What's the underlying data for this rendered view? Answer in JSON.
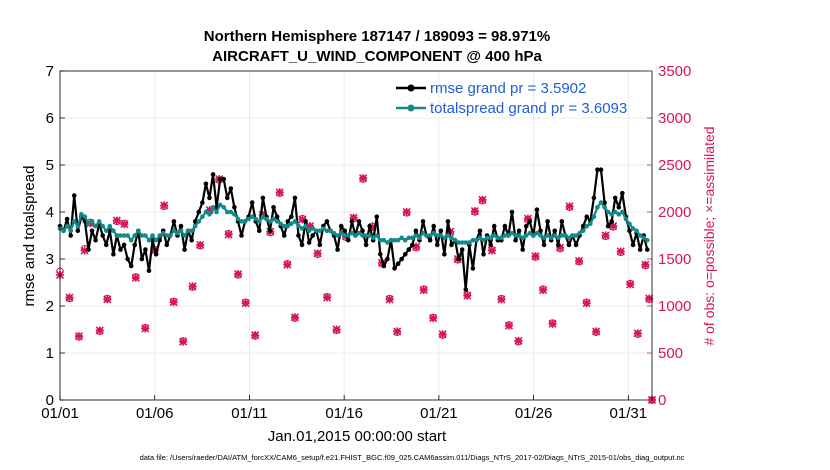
{
  "chart_data": {
    "type": "line",
    "title": [
      "Northern Hemisphere 187147 / 189093 = 98.971%",
      "AIRCRAFT_U_WIND_COMPONENT @ 400 hPa"
    ],
    "xlabel": "Jan.01,2015 00:00:00 start",
    "ylabel": "rmse and totalspread",
    "ylabel_right": "# of obs: o=possible; ×=assimilated",
    "footnote": "data file: /Users/raeder/DAI/ATM_forcXX/CAM6_setup/f.e21.FHIST_BGC.f09_025.CAM6assim.011/Diags_NTrS_2017-02/Diags_NTrS_2015-01/obs_diag_output.nc",
    "xlim": [
      0,
      31.25
    ],
    "ylim": [
      0,
      7
    ],
    "ylim_right": [
      0,
      3500
    ],
    "x_ticks": [
      0,
      5,
      10,
      15,
      20,
      25,
      30
    ],
    "x_tick_labels": [
      "01/01",
      "01/06",
      "01/11",
      "01/16",
      "01/21",
      "01/26",
      "01/31"
    ],
    "y_ticks": [
      0,
      1,
      2,
      3,
      4,
      5,
      6,
      7
    ],
    "y_ticks_right": [
      0,
      500,
      1000,
      1500,
      2000,
      2500,
      3000,
      3500
    ],
    "colors": {
      "rmse": "#000000",
      "spread": "#128a8a",
      "obs": "#d6165a",
      "legend_text": "#1f5fd6"
    },
    "series": [
      {
        "name": "rmse grand pr = 3.5902",
        "values": [
          3.7,
          3.6,
          3.85,
          3.5,
          4.35,
          3.6,
          3.9,
          3.8,
          3.2,
          3.6,
          3.4,
          3.75,
          3.5,
          3.3,
          3.6,
          3.1,
          3.5,
          3.2,
          3.3,
          3.0,
          2.85,
          3.3,
          3.6,
          3.0,
          3.2,
          2.75,
          3.4,
          3.1,
          3.4,
          3.6,
          3.3,
          3.5,
          3.8,
          3.5,
          3.7,
          3.2,
          3.6,
          3.4,
          3.8,
          4.0,
          4.2,
          4.6,
          4.3,
          4.8,
          4.1,
          4.7,
          4.7,
          4.3,
          4.5,
          4.1,
          3.8,
          3.5,
          3.8,
          3.9,
          4.2,
          3.8,
          3.6,
          4.3,
          3.9,
          3.6,
          4.1,
          3.9,
          3.7,
          3.5,
          3.8,
          3.9,
          4.3,
          3.5,
          3.3,
          3.8,
          3.35,
          3.5,
          3.6,
          3.3,
          3.7,
          3.8,
          3.6,
          3.5,
          3.2,
          3.7,
          3.6,
          3.4,
          3.8,
          3.5,
          3.8,
          3.6,
          3.3,
          3.7,
          3.4,
          3.9,
          3.1,
          2.85,
          3.0,
          3.4,
          2.8,
          2.9,
          3.0,
          3.1,
          3.2,
          3.3,
          3.6,
          3.4,
          3.8,
          3.5,
          3.4,
          3.7,
          3.3,
          3.6,
          3.1,
          3.8,
          3.3,
          3.4,
          3.0,
          3.2,
          2.35,
          3.3,
          2.8,
          3.4,
          3.6,
          3.1,
          3.5,
          3.3,
          3.7,
          3.4,
          3.4,
          3.7,
          3.5,
          4.0,
          3.4,
          3.6,
          3.2,
          3.7,
          3.8,
          3.5,
          4.05,
          3.6,
          3.3,
          3.8,
          3.4,
          3.6,
          3.3,
          3.8,
          3.5,
          3.3,
          3.5,
          3.3,
          3.5,
          3.7,
          3.9,
          3.8,
          4.3,
          4.9,
          4.9,
          4.2,
          3.7,
          3.8,
          4.3,
          4.1,
          4.4,
          3.9,
          3.6,
          3.3,
          3.55,
          3.2,
          3.5,
          3.2
        ]
      },
      {
        "name": "totalspread grand pr = 3.6093",
        "values": [
          3.65,
          3.6,
          3.7,
          3.6,
          3.8,
          3.7,
          3.95,
          3.9,
          3.75,
          3.8,
          3.7,
          3.8,
          3.7,
          3.6,
          3.7,
          3.6,
          3.5,
          3.5,
          3.5,
          3.5,
          3.4,
          3.5,
          3.6,
          3.5,
          3.5,
          3.4,
          3.5,
          3.4,
          3.5,
          3.55,
          3.5,
          3.5,
          3.6,
          3.55,
          3.6,
          3.5,
          3.6,
          3.6,
          3.7,
          3.8,
          3.9,
          4.0,
          3.95,
          4.1,
          4.0,
          4.15,
          4.1,
          4.0,
          4.0,
          3.95,
          3.85,
          3.8,
          3.8,
          3.85,
          3.9,
          3.85,
          3.8,
          3.9,
          3.85,
          3.8,
          3.85,
          3.8,
          3.75,
          3.7,
          3.7,
          3.75,
          3.8,
          3.7,
          3.65,
          3.7,
          3.6,
          3.65,
          3.6,
          3.6,
          3.65,
          3.6,
          3.6,
          3.55,
          3.5,
          3.55,
          3.5,
          3.5,
          3.55,
          3.5,
          3.55,
          3.5,
          3.5,
          3.5,
          3.45,
          3.5,
          3.4,
          3.4,
          3.35,
          3.4,
          3.4,
          3.4,
          3.45,
          3.4,
          3.45,
          3.45,
          3.5,
          3.45,
          3.55,
          3.5,
          3.5,
          3.55,
          3.5,
          3.5,
          3.45,
          3.5,
          3.45,
          3.4,
          3.35,
          3.35,
          3.35,
          3.35,
          3.4,
          3.4,
          3.45,
          3.4,
          3.45,
          3.45,
          3.5,
          3.45,
          3.45,
          3.5,
          3.5,
          3.55,
          3.5,
          3.5,
          3.45,
          3.5,
          3.55,
          3.5,
          3.55,
          3.5,
          3.45,
          3.5,
          3.45,
          3.5,
          3.45,
          3.5,
          3.5,
          3.45,
          3.5,
          3.5,
          3.55,
          3.6,
          3.7,
          3.75,
          3.9,
          4.1,
          4.2,
          4.1,
          4.0,
          3.95,
          4.0,
          3.95,
          4.0,
          3.85,
          3.75,
          3.65,
          3.6,
          3.5,
          3.45,
          3.4
        ]
      }
    ],
    "obs_counts": [
      [
        0.0,
        1370,
        1330
      ],
      [
        0.5,
        1080,
        1090
      ],
      [
        1.0,
        670,
        680
      ],
      [
        1.3,
        1610,
        1590
      ],
      [
        1.6,
        1890,
        1880
      ],
      [
        2.1,
        730,
        740
      ],
      [
        2.5,
        1080,
        1070
      ],
      [
        3.0,
        1900,
        1910
      ],
      [
        3.4,
        1880,
        1870
      ],
      [
        4.0,
        1310,
        1300
      ],
      [
        4.5,
        770,
        760
      ],
      [
        5.0,
        1600,
        1590
      ],
      [
        5.5,
        2060,
        2070
      ],
      [
        6.0,
        1050,
        1040
      ],
      [
        6.5,
        630,
        620
      ],
      [
        7.0,
        1200,
        1210
      ],
      [
        7.4,
        1640,
        1650
      ],
      [
        7.9,
        2010,
        2020
      ],
      [
        8.4,
        2340,
        2350
      ],
      [
        8.9,
        1770,
        1760
      ],
      [
        9.4,
        1330,
        1340
      ],
      [
        9.8,
        1040,
        1030
      ],
      [
        10.3,
        680,
        690
      ],
      [
        10.7,
        1960,
        1970
      ],
      [
        11.1,
        1780,
        1790
      ],
      [
        11.6,
        2200,
        2210
      ],
      [
        12.0,
        1450,
        1440
      ],
      [
        12.4,
        870,
        880
      ],
      [
        12.8,
        1930,
        1920
      ],
      [
        13.2,
        1840,
        1850
      ],
      [
        13.6,
        1550,
        1560
      ],
      [
        14.1,
        1100,
        1090
      ],
      [
        14.6,
        740,
        750
      ],
      [
        15.1,
        1730,
        1740
      ],
      [
        15.5,
        1930,
        1940
      ],
      [
        16.0,
        2350,
        2360
      ],
      [
        16.5,
        1850,
        1840
      ],
      [
        17.0,
        1450,
        1460
      ],
      [
        17.4,
        1080,
        1070
      ],
      [
        17.8,
        720,
        730
      ],
      [
        18.3,
        1990,
        2000
      ],
      [
        18.8,
        1620,
        1630
      ],
      [
        19.2,
        1180,
        1170
      ],
      [
        19.7,
        880,
        870
      ],
      [
        20.2,
        690,
        700
      ],
      [
        20.6,
        1780,
        1790
      ],
      [
        21.0,
        1490,
        1500
      ],
      [
        21.5,
        1120,
        1110
      ],
      [
        21.9,
        2000,
        2010
      ],
      [
        22.3,
        2120,
        2130
      ],
      [
        22.8,
        1600,
        1590
      ],
      [
        23.3,
        1080,
        1070
      ],
      [
        23.7,
        800,
        790
      ],
      [
        24.2,
        620,
        630
      ],
      [
        24.7,
        1920,
        1930
      ],
      [
        25.1,
        1520,
        1530
      ],
      [
        25.5,
        1180,
        1170
      ],
      [
        26.0,
        820,
        810
      ],
      [
        26.4,
        1610,
        1620
      ],
      [
        26.9,
        2050,
        2060
      ],
      [
        27.4,
        1470,
        1480
      ],
      [
        27.8,
        1040,
        1030
      ],
      [
        28.3,
        720,
        730
      ],
      [
        28.8,
        1740,
        1750
      ],
      [
        29.2,
        1840,
        1850
      ],
      [
        29.6,
        1570,
        1580
      ],
      [
        30.1,
        1240,
        1230
      ],
      [
        30.5,
        700,
        710
      ],
      [
        30.9,
        1430,
        1440
      ],
      [
        31.1,
        1070,
        1080
      ],
      [
        31.25,
        0,
        0
      ]
    ]
  }
}
